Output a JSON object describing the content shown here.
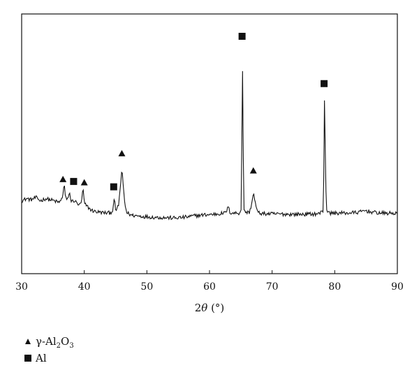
{
  "chart_data": {
    "type": "line",
    "title": "",
    "xlabel_main": "2",
    "xlabel_var": "θ",
    "xlabel_unit": " (°)",
    "ylabel": "",
    "xlim": [
      30,
      90
    ],
    "ylim": [
      0,
      1
    ],
    "x_ticks": [
      30,
      40,
      50,
      60,
      70,
      80,
      90
    ],
    "y_ticks_shown": false,
    "grid": false,
    "line_color": "#111111",
    "series": [
      {
        "points": [
          [
            30.0,
            0.235
          ],
          [
            30.8,
            0.245
          ],
          [
            31.5,
            0.24
          ],
          [
            32.3,
            0.25
          ],
          [
            33.0,
            0.235
          ],
          [
            33.8,
            0.245
          ],
          [
            34.5,
            0.24
          ],
          [
            35.2,
            0.235
          ],
          [
            35.8,
            0.228
          ],
          [
            36.2,
            0.232
          ],
          [
            36.5,
            0.25
          ],
          [
            36.8,
            0.315
          ],
          [
            37.0,
            0.248
          ],
          [
            37.4,
            0.238
          ],
          [
            37.6,
            0.28
          ],
          [
            37.9,
            0.232
          ],
          [
            38.4,
            0.236
          ],
          [
            38.9,
            0.222
          ],
          [
            39.3,
            0.214
          ],
          [
            39.6,
            0.236
          ],
          [
            39.8,
            0.3
          ],
          [
            40.0,
            0.222
          ],
          [
            40.6,
            0.205
          ],
          [
            41.2,
            0.19
          ],
          [
            41.8,
            0.185
          ],
          [
            42.4,
            0.182
          ],
          [
            43.0,
            0.18
          ],
          [
            43.6,
            0.178
          ],
          [
            44.2,
            0.18
          ],
          [
            44.5,
            0.188
          ],
          [
            44.8,
            0.24
          ],
          [
            45.0,
            0.198
          ],
          [
            45.2,
            0.19
          ],
          [
            45.5,
            0.22
          ],
          [
            45.8,
            0.31
          ],
          [
            46.0,
            0.385
          ],
          [
            46.2,
            0.31
          ],
          [
            46.5,
            0.215
          ],
          [
            46.8,
            0.18
          ],
          [
            47.5,
            0.168
          ],
          [
            48.5,
            0.165
          ],
          [
            49.5,
            0.162
          ],
          [
            50.5,
            0.16
          ],
          [
            51.5,
            0.158
          ],
          [
            52.5,
            0.157
          ],
          [
            53.5,
            0.156
          ],
          [
            54.5,
            0.155
          ],
          [
            55.5,
            0.157
          ],
          [
            56.5,
            0.16
          ],
          [
            57.5,
            0.165
          ],
          [
            58.5,
            0.168
          ],
          [
            59.5,
            0.17
          ],
          [
            60.5,
            0.172
          ],
          [
            61.5,
            0.175
          ],
          [
            62.5,
            0.178
          ],
          [
            63.0,
            0.205
          ],
          [
            63.3,
            0.18
          ],
          [
            64.0,
            0.178
          ],
          [
            64.8,
            0.178
          ],
          [
            65.1,
            0.2
          ],
          [
            65.25,
            0.96
          ],
          [
            65.35,
            0.55
          ],
          [
            65.5,
            0.2
          ],
          [
            65.8,
            0.18
          ],
          [
            66.4,
            0.182
          ],
          [
            66.8,
            0.23
          ],
          [
            67.0,
            0.275
          ],
          [
            67.3,
            0.225
          ],
          [
            67.7,
            0.18
          ],
          [
            68.5,
            0.175
          ],
          [
            70.0,
            0.174
          ],
          [
            72.0,
            0.173
          ],
          [
            74.0,
            0.172
          ],
          [
            76.0,
            0.173
          ],
          [
            77.5,
            0.175
          ],
          [
            78.2,
            0.19
          ],
          [
            78.35,
            0.72
          ],
          [
            78.5,
            0.45
          ],
          [
            78.65,
            0.2
          ],
          [
            79.0,
            0.178
          ],
          [
            80.0,
            0.178
          ],
          [
            82.0,
            0.178
          ],
          [
            84.0,
            0.182
          ],
          [
            84.8,
            0.19
          ],
          [
            85.5,
            0.185
          ],
          [
            86.5,
            0.18
          ],
          [
            88.0,
            0.177
          ],
          [
            90.0,
            0.177
          ]
        ]
      }
    ],
    "markers": [
      {
        "shape": "triangle",
        "phase": "γ-Al2O3",
        "x": 36.6,
        "y": 0.335
      },
      {
        "shape": "square",
        "phase": "Al",
        "x": 38.3,
        "y": 0.325
      },
      {
        "shape": "triangle",
        "phase": "γ-Al2O3",
        "x": 40.0,
        "y": 0.32
      },
      {
        "shape": "square",
        "phase": "Al",
        "x": 44.7,
        "y": 0.3
      },
      {
        "shape": "triangle",
        "phase": "γ-Al2O3",
        "x": 46.0,
        "y": 0.455
      },
      {
        "shape": "square",
        "phase": "Al",
        "x": 65.2,
        "y": 1.0
      },
      {
        "shape": "triangle",
        "phase": "γ-Al2O3",
        "x": 67.0,
        "y": 0.375
      },
      {
        "shape": "square",
        "phase": "Al",
        "x": 78.3,
        "y": 0.78
      }
    ],
    "legend": {
      "placement": "bottom-left",
      "entries": [
        {
          "symbol": "triangle",
          "text_prefix": "γ-Al",
          "sub1": "2",
          "mid": "O",
          "sub2": "3"
        },
        {
          "symbol": "square",
          "text_prefix": "Al",
          "sub1": "",
          "mid": "",
          "sub2": ""
        }
      ]
    }
  }
}
